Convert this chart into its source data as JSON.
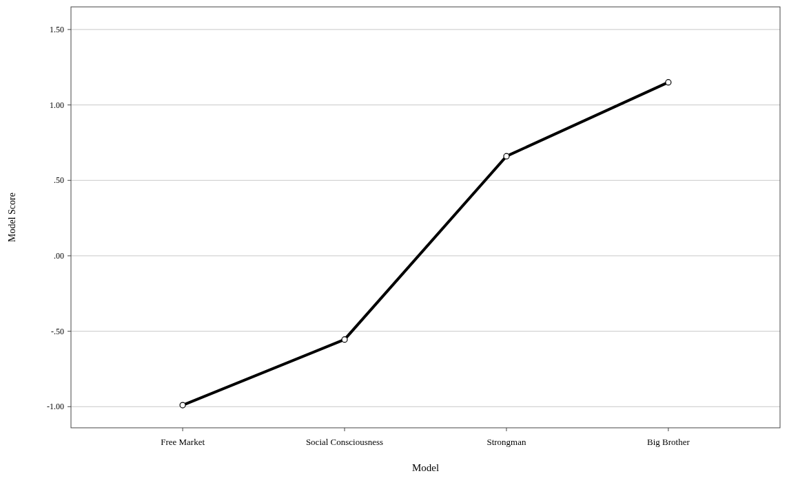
{
  "chart_data": {
    "type": "line",
    "xlabel": "Model",
    "ylabel": "Model Score",
    "categories": [
      "Free Market",
      "Social Consciousness",
      "Strongman",
      "Big Brother"
    ],
    "series": [
      {
        "color": "#000000",
        "values": [
          -0.99,
          -0.555,
          0.66,
          1.15
        ]
      }
    ],
    "ylim": [
      -1.14,
      1.65
    ],
    "yticks": [
      {
        "value": -1,
        "label": "-1.00"
      },
      {
        "value": -0.5,
        "label": "-.50"
      },
      {
        "value": 0,
        "label": ".00"
      },
      {
        "value": 0.5,
        "label": ".50"
      },
      {
        "value": 1,
        "label": "1.00"
      },
      {
        "value": 1.5,
        "label": "1.50"
      }
    ],
    "grid": "y",
    "marker": "circle",
    "line_style": "solid"
  }
}
